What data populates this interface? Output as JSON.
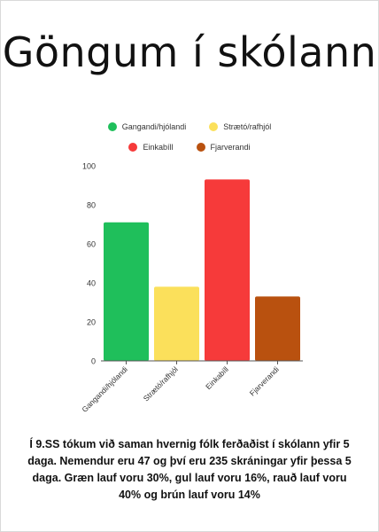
{
  "page": {
    "title": "Göngum í skólann"
  },
  "caption": "Í 9.SS tókum við saman hvernig fólk ferðaðist í skólann yfir 5 daga. Nemendur eru 47 og því eru 235 skráningar yfir þessa 5 daga. Græn lauf voru 30%, gul lauf voru 16%, rauð lauf voru 40% og brún lauf voru 14%",
  "chart_data": {
    "type": "bar",
    "title": "",
    "xlabel": "",
    "ylabel": "",
    "categories": [
      "Gangandi/hjólandi",
      "Strætó/rafhjól",
      "Einkabíll",
      "Fjarverandi"
    ],
    "values": [
      71,
      38,
      93,
      33
    ],
    "colors": [
      "#1fbf5b",
      "#fbe05b",
      "#f63a3a",
      "#b9510f"
    ],
    "ylim": [
      0,
      100
    ],
    "yticks": [
      0,
      20,
      40,
      60,
      80,
      100
    ],
    "grid": false,
    "legend": {
      "position": "top",
      "rows": [
        [
          {
            "label": "Gangandi/hjólandi",
            "color": "#1fbf5b"
          },
          {
            "label": "Strætó/rafhjól",
            "color": "#fbe05b"
          }
        ],
        [
          {
            "label": "Einkabíll",
            "color": "#f63a3a"
          },
          {
            "label": "Fjarverandi",
            "color": "#b9510f"
          }
        ]
      ]
    }
  }
}
